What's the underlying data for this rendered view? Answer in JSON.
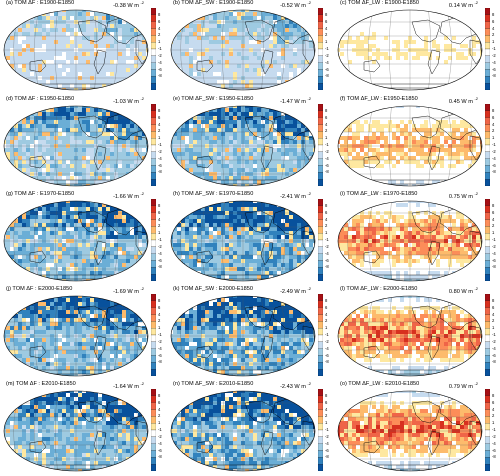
{
  "unit": "W m",
  "unit_exp": "-2",
  "colorbar": {
    "labels": [
      "8",
      "6",
      "4",
      "2",
      "1",
      "-1",
      "-2",
      "-4",
      "-6",
      "-8"
    ],
    "colors": [
      "#a50f15",
      "#d7301f",
      "#ef6548",
      "#fc8d59",
      "#fdbb6c",
      "#fee8a0",
      "#ffffff",
      "#c6dbef",
      "#9ecae1",
      "#6baed6",
      "#3182bd",
      "#08519c"
    ]
  },
  "panels": [
    {
      "title": "(a) TOM ΔF : E1900-E1850",
      "value": "-0.38",
      "field": "net",
      "mag": 0.25
    },
    {
      "title": "(b) TOM ΔF_SW : E1900-E1850",
      "value": "-0.52",
      "field": "sw",
      "mag": 0.3
    },
    {
      "title": "(c) TOM ΔF_LW : E1900-E1850",
      "value": "0.14",
      "field": "lw",
      "mag": 0.1
    },
    {
      "title": "(d) TOM ΔF : E1950-E1850",
      "value": "-1.03",
      "field": "net",
      "mag": 0.55
    },
    {
      "title": "(e) TOM ΔF_SW : E1950-E1850",
      "value": "-1.47",
      "field": "sw",
      "mag": 0.65
    },
    {
      "title": "(f) TOM ΔF_LW : E1950-E1850",
      "value": "0.45",
      "field": "lw",
      "mag": 0.35
    },
    {
      "title": "(g) TOM ΔF : E1970-E1850",
      "value": "-1.66",
      "field": "net",
      "mag": 0.75
    },
    {
      "title": "(h) TOM ΔF_SW : E1970-E1850",
      "value": "-2.41",
      "field": "sw",
      "mag": 0.9
    },
    {
      "title": "(i) TOM ΔF_LW : E1970-E1850",
      "value": "0.75",
      "field": "lw",
      "mag": 0.65
    },
    {
      "title": "(j) TOM ΔF : E2000-E1850",
      "value": "-1.69",
      "field": "net",
      "mag": 0.75
    },
    {
      "title": "(k) TOM ΔF_SW : E2000-E1850",
      "value": "-2.49",
      "field": "sw",
      "mag": 0.95
    },
    {
      "title": "(l) TOM ΔF_LW : E2000-E1850",
      "value": "0.80",
      "field": "lw",
      "mag": 0.75
    },
    {
      "title": "(m) TOM ΔF : E2010-E1850",
      "value": "-1.64",
      "field": "net",
      "mag": 0.75
    },
    {
      "title": "(n) TOM ΔF_SW : E2010-E1850",
      "value": "-2.43",
      "field": "sw",
      "mag": 0.9
    },
    {
      "title": "(o) TOM ΔF_LW : E2010-E1850",
      "value": "0.79",
      "field": "lw",
      "mag": 0.75
    }
  ]
}
